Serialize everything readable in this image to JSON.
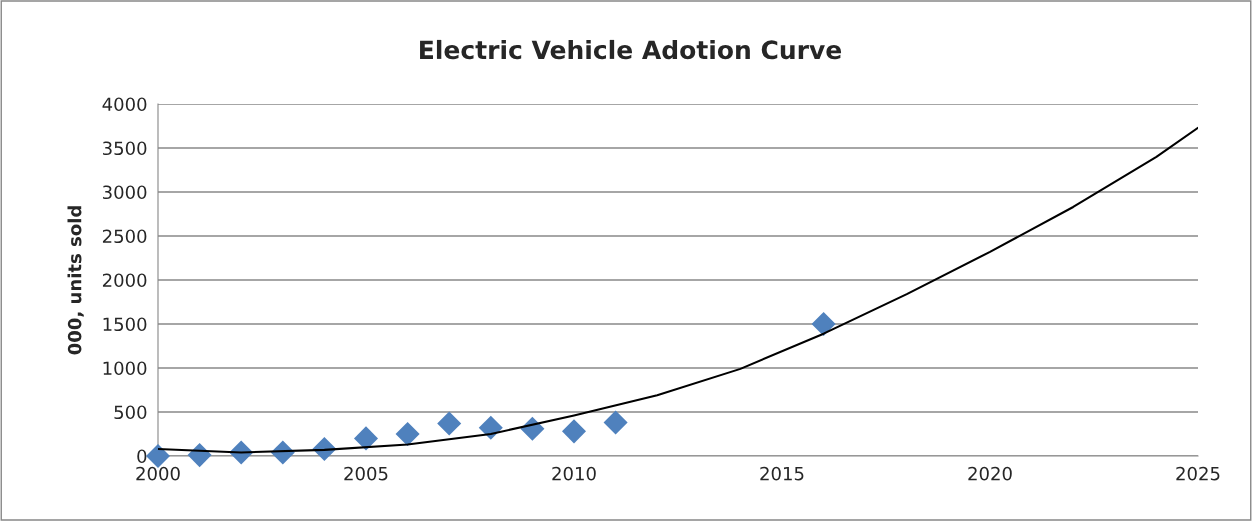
{
  "chart_data": {
    "type": "scatter",
    "title": "Electric Vehicle Adotion Curve",
    "ylabel": "000, units sold",
    "series": [
      {
        "color": "#4f81bd",
        "marker": "diamond",
        "x": [
          2000,
          2001,
          2002,
          2003,
          2004,
          2005,
          2006,
          2007,
          2008,
          2009,
          2010,
          2011,
          2016
        ],
        "values": [
          0,
          10,
          40,
          40,
          80,
          200,
          250,
          370,
          320,
          310,
          280,
          380,
          1500
        ]
      },
      {
        "type": "line",
        "color": "#000000",
        "marker": "none",
        "x": [
          2000,
          2002,
          2004,
          2006,
          2008,
          2010,
          2012,
          2014,
          2016,
          2018,
          2020,
          2022,
          2024,
          2025
        ],
        "values": [
          80,
          40,
          70,
          130,
          250,
          460,
          690,
          990,
          1390,
          1840,
          2320,
          2830,
          3400,
          3730
        ]
      }
    ],
    "xlim": [
      2000,
      2025
    ],
    "xticks": [
      2000,
      2005,
      2010,
      2015,
      2020,
      2025
    ],
    "ylim": [
      0,
      4000
    ],
    "yticks": [
      0,
      500,
      1000,
      1500,
      2000,
      2500,
      3000,
      3500,
      4000
    ],
    "grid": "y",
    "legend": false
  }
}
